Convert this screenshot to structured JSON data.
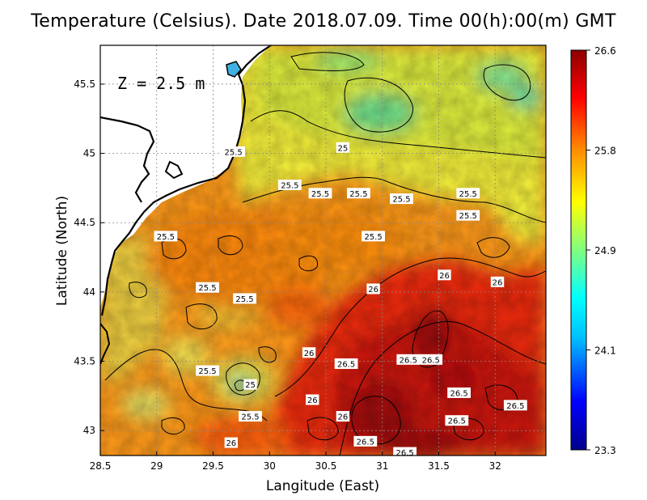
{
  "title": "Temperature (Celsius). Date 2018.07.09. Time 00(h):00(m) GMT",
  "depth_label": "Z = 2.5 m",
  "x_axis": {
    "label": "Langitude (East)",
    "ticks": [
      "28.5",
      "29",
      "29.5",
      "30",
      "30.5",
      "31",
      "31.5",
      "32"
    ],
    "range": [
      28.5,
      32.45
    ]
  },
  "y_axis": {
    "label": "Latitude (North)",
    "ticks": [
      "43",
      "43.5",
      "44",
      "44.5",
      "45",
      "45.5"
    ],
    "range": [
      42.82,
      45.78
    ]
  },
  "colorbar": {
    "min": 23.3,
    "max": 26.6,
    "tick_labels": [
      "26.6",
      "25.8",
      "24.9",
      "24.1",
      "23.3"
    ],
    "colors": [
      "#00008b",
      "#0000ff",
      "#00bfff",
      "#00ffff",
      "#7fff7f",
      "#ffff00",
      "#ff8c00",
      "#ff0000",
      "#8b0000"
    ]
  },
  "contour_labels": [
    {
      "text": "25.5",
      "lon": 29.68,
      "lat": 45.01
    },
    {
      "text": "25",
      "lon": 30.65,
      "lat": 45.04
    },
    {
      "text": "25.5",
      "lon": 30.18,
      "lat": 44.77
    },
    {
      "text": "25.5",
      "lon": 30.45,
      "lat": 44.71
    },
    {
      "text": "25.5",
      "lon": 30.79,
      "lat": 44.71
    },
    {
      "text": "25.5",
      "lon": 31.17,
      "lat": 44.67
    },
    {
      "text": "25.5",
      "lon": 31.76,
      "lat": 44.71
    },
    {
      "text": "25.5",
      "lon": 31.76,
      "lat": 44.55
    },
    {
      "text": "25.5",
      "lon": 29.08,
      "lat": 44.4
    },
    {
      "text": "25.5",
      "lon": 30.92,
      "lat": 44.4
    },
    {
      "text": "25.5",
      "lon": 29.45,
      "lat": 44.03
    },
    {
      "text": "26",
      "lon": 31.55,
      "lat": 44.12
    },
    {
      "text": "26",
      "lon": 32.02,
      "lat": 44.07
    },
    {
      "text": "26",
      "lon": 30.92,
      "lat": 44.02
    },
    {
      "text": "25.5",
      "lon": 29.78,
      "lat": 43.95
    },
    {
      "text": "26",
      "lon": 30.35,
      "lat": 43.56
    },
    {
      "text": "26.5",
      "lon": 30.68,
      "lat": 43.48
    },
    {
      "text": "26.5",
      "lon": 31.23,
      "lat": 43.51
    },
    {
      "text": "26.5",
      "lon": 31.43,
      "lat": 43.51
    },
    {
      "text": "25.5",
      "lon": 29.45,
      "lat": 43.43
    },
    {
      "text": "25",
      "lon": 29.83,
      "lat": 43.33
    },
    {
      "text": "26.5",
      "lon": 31.68,
      "lat": 43.27
    },
    {
      "text": "26",
      "lon": 30.38,
      "lat": 43.22
    },
    {
      "text": "26.5",
      "lon": 32.18,
      "lat": 43.18
    },
    {
      "text": "25.5",
      "lon": 29.83,
      "lat": 43.1
    },
    {
      "text": "26",
      "lon": 30.65,
      "lat": 43.1
    },
    {
      "text": "26.5",
      "lon": 31.66,
      "lat": 43.07
    },
    {
      "text": "26.5",
      "lon": 30.85,
      "lat": 42.92
    },
    {
      "text": "26",
      "lon": 29.66,
      "lat": 42.91
    },
    {
      "text": "26.5",
      "lon": 31.2,
      "lat": 42.84
    }
  ]
}
